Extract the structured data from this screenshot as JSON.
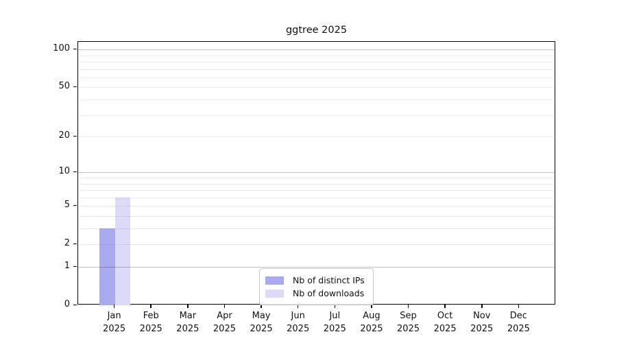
{
  "title": "ggtree 2025",
  "chart_data": {
    "type": "bar",
    "title": "ggtree 2025",
    "categories": [
      "Jan",
      "Feb",
      "Mar",
      "Apr",
      "May",
      "Jun",
      "Jul",
      "Aug",
      "Sep",
      "Oct",
      "Nov",
      "Dec"
    ],
    "year_label": "2025",
    "series": [
      {
        "name": "Nb of distinct IPs",
        "color": "#aaaaf0",
        "values": [
          3,
          0,
          0,
          0,
          0,
          0,
          0,
          0,
          0,
          0,
          0,
          0
        ]
      },
      {
        "name": "Nb of downloads",
        "color": "#dbdbf8",
        "values": [
          6,
          0,
          0,
          0,
          0,
          0,
          0,
          0,
          0,
          0,
          0,
          0
        ]
      }
    ],
    "xlabel": "",
    "ylabel": "",
    "y_scale": "log1p",
    "y_ticks": [
      0,
      1,
      2,
      5,
      10,
      20,
      50,
      100
    ],
    "y_max": 115,
    "ylim": [
      0,
      115
    ],
    "gridlines_minor": [
      2,
      3,
      4,
      5,
      6,
      7,
      8,
      9,
      20,
      30,
      40,
      50,
      60,
      70,
      80,
      90
    ],
    "gridlines_major": [
      1,
      10,
      100
    ],
    "grid_on": true,
    "legend_position": "bottom-center",
    "colors": {
      "frame": "#000000",
      "grid_minor": "#ececec",
      "grid_major": "#c2c2c2",
      "background": "#ffffff",
      "text": "#111111"
    }
  }
}
